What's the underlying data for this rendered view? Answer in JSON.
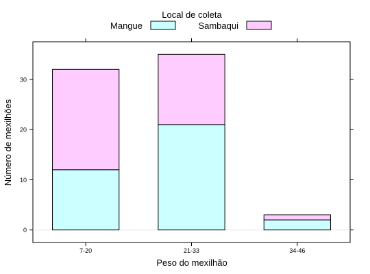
{
  "chart_data": {
    "type": "bar",
    "stacked": true,
    "categories": [
      "7-20",
      "21-33",
      "34-46"
    ],
    "series": [
      {
        "name": "Mangue",
        "values": [
          12,
          21,
          2
        ],
        "color": "#ccffff"
      },
      {
        "name": "Sambaqui",
        "values": [
          20,
          14,
          1
        ],
        "color": "#ffccff"
      }
    ],
    "xlabel": "Peso do mexilhão",
    "ylabel": "Número de mexilhões",
    "ylim": [
      -2.5,
      37.5
    ],
    "yticks": [
      0,
      10,
      20,
      30
    ],
    "legend": {
      "title": "Local de coleta",
      "placement": "top"
    },
    "grid": false,
    "zero_line": true
  }
}
